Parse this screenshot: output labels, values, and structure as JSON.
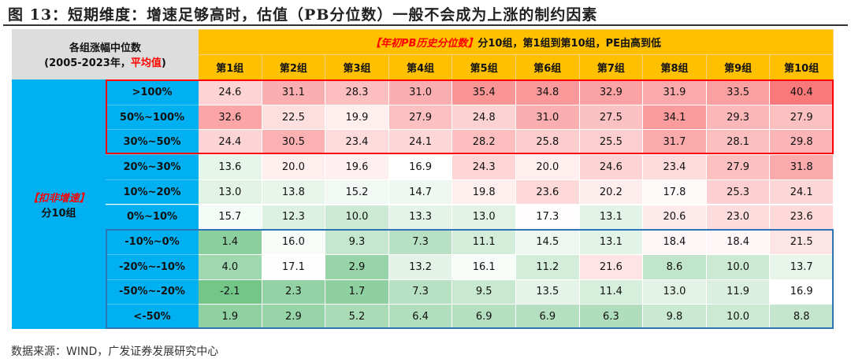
{
  "title": "图 13：短期维度：增速足够高时，估值（PB分位数）一般不会成为上涨的制约因素",
  "corner": {
    "line1": "各组涨幅中位数",
    "line2a": "(2005-2023年，",
    "line2b": "平均值",
    ")": ")"
  },
  "header": {
    "emph": "【年初PB历史分位数】",
    "rest": "分10组，第1组到第10组，PE由高到低"
  },
  "left": {
    "emph": "【扣非增速】",
    "rest": "分10组"
  },
  "source": "数据来源：WIND，广发证券发展研究中心",
  "colors": {
    "high": "#F8696B",
    "low": "#63BE7B",
    "mid": "#FFFFFF",
    "header": "#FFC000",
    "side": "#00B0F0"
  },
  "chart_data": {
    "type": "heatmap",
    "columns": [
      "第1组",
      "第2组",
      "第3组",
      "第4组",
      "第5组",
      "第6组",
      "第7组",
      "第8组",
      "第9组",
      "第10组"
    ],
    "rows": [
      ">100%",
      "50%~100%",
      "30%~50%",
      "20%~30%",
      "10%~20%",
      "0%~10%",
      "-10%~0%",
      "-20%~-10%",
      "-50%~-20%",
      "<-50%"
    ],
    "values": [
      [
        24.6,
        31.1,
        28.3,
        31.0,
        35.4,
        34.8,
        32.9,
        31.9,
        33.5,
        40.4
      ],
      [
        32.6,
        22.5,
        19.9,
        27.9,
        24.8,
        31.0,
        27.5,
        34.1,
        29.3,
        27.9
      ],
      [
        24.4,
        30.5,
        23.4,
        24.1,
        28.2,
        25.8,
        25.5,
        31.7,
        28.1,
        29.8
      ],
      [
        13.6,
        20.0,
        19.6,
        16.9,
        24.3,
        20.0,
        24.6,
        23.4,
        27.9,
        31.8
      ],
      [
        13.0,
        13.8,
        15.2,
        14.7,
        19.8,
        23.6,
        20.2,
        17.8,
        25.3,
        24.1
      ],
      [
        15.7,
        12.3,
        10.0,
        13.3,
        13.0,
        17.3,
        13.1,
        20.6,
        23.0,
        23.6
      ],
      [
        1.4,
        16.0,
        9.3,
        7.3,
        11.1,
        14.5,
        13.1,
        18.4,
        18.4,
        21.5
      ],
      [
        4.0,
        17.1,
        2.9,
        13.2,
        16.1,
        11.2,
        21.6,
        8.6,
        10.0,
        13.7
      ],
      [
        -2.1,
        2.3,
        1.7,
        7.3,
        9.5,
        13.5,
        11.4,
        13.0,
        11.9,
        16.9
      ],
      [
        1.9,
        2.9,
        5.2,
        6.4,
        6.9,
        6.9,
        6.3,
        9.8,
        10.0,
        8.8
      ]
    ]
  }
}
